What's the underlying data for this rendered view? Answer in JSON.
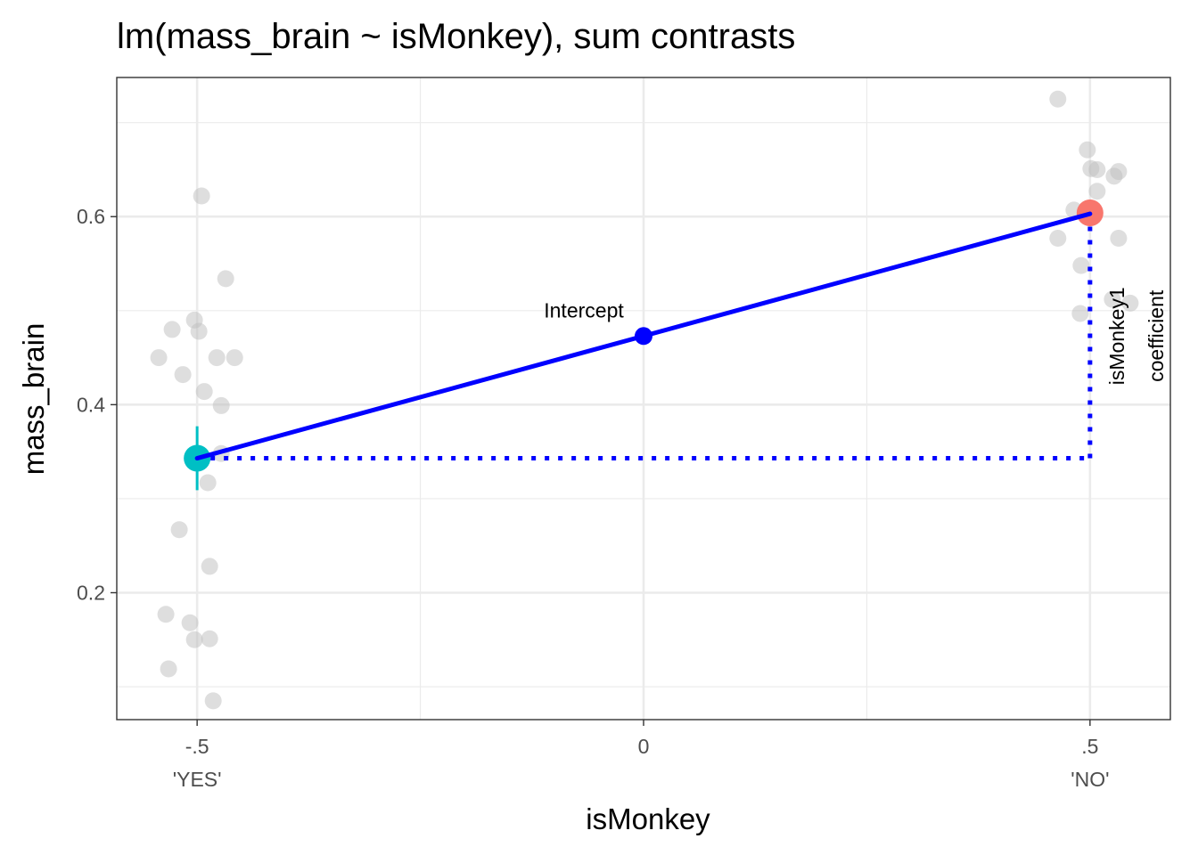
{
  "chart_data": {
    "type": "scatter",
    "title": "lm(mass_brain ~ isMonkey), sum contrasts",
    "xlabel": "isMonkey",
    "ylabel": "mass_brain",
    "xlim": [
      -0.59,
      0.59
    ],
    "ylim": [
      0.065,
      0.748
    ],
    "x_ticks": [
      {
        "value": -0.5,
        "label": "-.5",
        "sublabel": "'YES'"
      },
      {
        "value": 0,
        "label": "0",
        "sublabel": ""
      },
      {
        "value": 0.5,
        "label": ".5",
        "sublabel": "'NO'"
      }
    ],
    "x_minor_grid": [
      -0.25,
      0.25
    ],
    "y_ticks": [
      {
        "value": 0.2,
        "label": "0.2"
      },
      {
        "value": 0.4,
        "label": "0.4"
      },
      {
        "value": 0.6,
        "label": "0.6"
      }
    ],
    "y_minor_grid": [
      0.1,
      0.3,
      0.5,
      0.7
    ],
    "grid": true,
    "colors": {
      "raw_points": "#bebebe",
      "group_yes": "#00BFC4",
      "group_no": "#F8766D",
      "model": "#0000FF",
      "panel_border": "#333333",
      "grid": "#ebebeb"
    },
    "raw_points_yes": [
      {
        "x": -0.495,
        "y": 0.622
      },
      {
        "x": -0.468,
        "y": 0.534
      },
      {
        "x": -0.503,
        "y": 0.49
      },
      {
        "x": -0.528,
        "y": 0.48
      },
      {
        "x": -0.498,
        "y": 0.478
      },
      {
        "x": -0.543,
        "y": 0.45
      },
      {
        "x": -0.458,
        "y": 0.45
      },
      {
        "x": -0.478,
        "y": 0.45
      },
      {
        "x": -0.516,
        "y": 0.432
      },
      {
        "x": -0.492,
        "y": 0.414
      },
      {
        "x": -0.473,
        "y": 0.399
      },
      {
        "x": -0.473,
        "y": 0.348
      },
      {
        "x": -0.488,
        "y": 0.317
      },
      {
        "x": -0.52,
        "y": 0.267
      },
      {
        "x": -0.486,
        "y": 0.228
      },
      {
        "x": -0.535,
        "y": 0.177
      },
      {
        "x": -0.508,
        "y": 0.168
      },
      {
        "x": -0.503,
        "y": 0.15
      },
      {
        "x": -0.486,
        "y": 0.151
      },
      {
        "x": -0.532,
        "y": 0.119
      },
      {
        "x": -0.482,
        "y": 0.085
      }
    ],
    "raw_points_no": [
      {
        "x": 0.464,
        "y": 0.725
      },
      {
        "x": 0.497,
        "y": 0.671
      },
      {
        "x": 0.501,
        "y": 0.651
      },
      {
        "x": 0.508,
        "y": 0.65
      },
      {
        "x": 0.532,
        "y": 0.648
      },
      {
        "x": 0.527,
        "y": 0.643
      },
      {
        "x": 0.508,
        "y": 0.627
      },
      {
        "x": 0.482,
        "y": 0.607
      },
      {
        "x": 0.464,
        "y": 0.577
      },
      {
        "x": 0.532,
        "y": 0.577
      },
      {
        "x": 0.49,
        "y": 0.548
      },
      {
        "x": 0.525,
        "y": 0.512
      },
      {
        "x": 0.545,
        "y": 0.508
      },
      {
        "x": 0.489,
        "y": 0.497
      }
    ],
    "group_means": [
      {
        "x": -0.5,
        "y": 0.343,
        "ymin": 0.309,
        "ymax": 0.377,
        "group": "YES"
      },
      {
        "x": 0.5,
        "y": 0.604,
        "ymin": 0.59,
        "ymax": 0.618,
        "group": "NO"
      }
    ],
    "model_line": {
      "x": [
        -0.5,
        0.5
      ],
      "y": [
        0.343,
        0.603
      ]
    },
    "intercept_point": {
      "x": 0,
      "y": 0.473
    },
    "coefficient_segments": {
      "horizontal": {
        "x": [
          -0.5,
          0.5
        ],
        "y": 0.343
      },
      "vertical": {
        "x": 0.5,
        "y": [
          0.343,
          0.603
        ]
      }
    },
    "annotations": {
      "intercept_label": "Intercept",
      "coef_label_line1": "isMonkey1",
      "coef_label_line2": "coefficient"
    }
  }
}
